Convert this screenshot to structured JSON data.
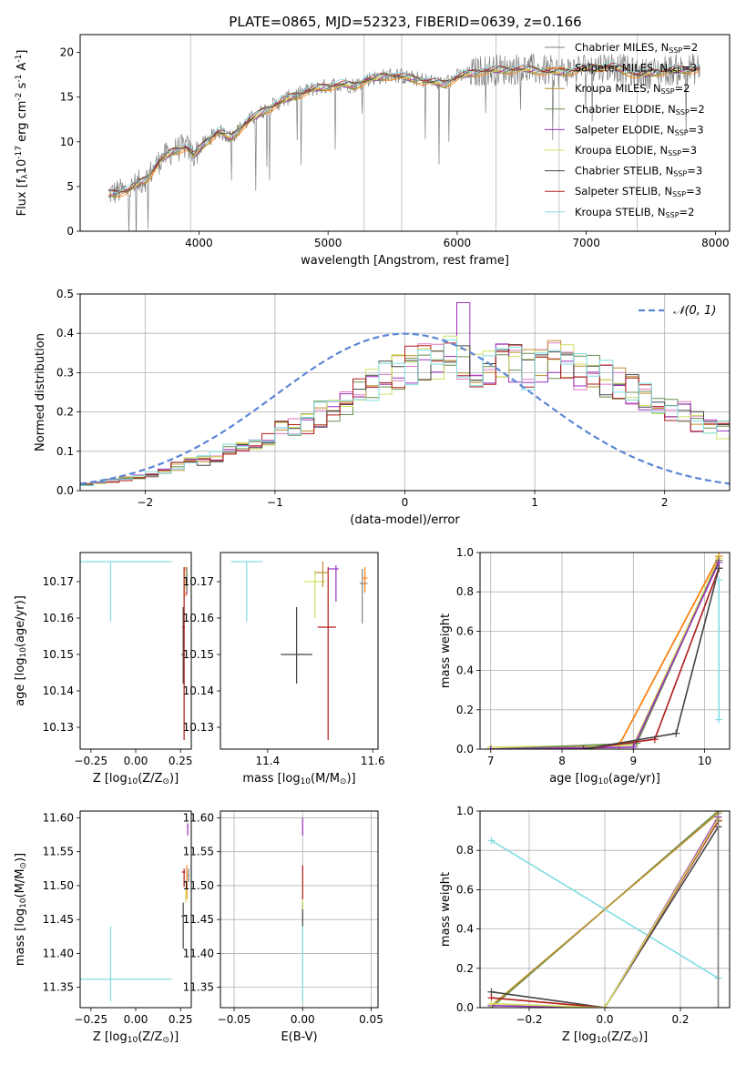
{
  "figure_title": "PLATE=0865, MJD=52323, FIBERID=0639, z=0.166",
  "palette": {
    "gray": "#7f7f7f",
    "blue": "#1f77b4",
    "orange": "#ff7f0e",
    "green": "#2ca02c",
    "red": "#d62728",
    "purple": "#9467bd",
    "brown": "#8c564b",
    "pink": "#e377c2",
    "olive": "#bcbd22",
    "cyan": "#17becf"
  },
  "series_styles": [
    {
      "color": "#7f7f7f"
    },
    {
      "color": "#ff7f0e"
    },
    {
      "color": "#bc8f2c"
    },
    {
      "color": "#6b8e4e"
    },
    {
      "color": "#9b30c0"
    },
    {
      "color": "#cfe060"
    },
    {
      "color": "#444444"
    },
    {
      "color": "#b01a1a"
    },
    {
      "color": "#80dde0"
    }
  ],
  "chart_data": [
    {
      "id": "spectrum",
      "type": "line",
      "title": "PLATE=0865, MJD=52323, FIBERID=0639, z=0.166",
      "xlabel": "wavelength [Angstrom, rest frame]",
      "ylabel_parts": [
        "Flux [f",
        "λ",
        "10",
        "-17",
        " erg cm",
        "-2",
        " s",
        "-1",
        " A",
        "-1",
        "]"
      ],
      "xlim": [
        3080,
        8110
      ],
      "ylim": [
        0,
        22
      ],
      "xticks": [
        4000,
        5000,
        6000,
        7000,
        8000
      ],
      "yticks": [
        0,
        5,
        10,
        15,
        20
      ],
      "vlines": [
        3935,
        5280,
        5570,
        6300,
        6790,
        7395
      ],
      "x_range_data": [
        3300,
        7880
      ],
      "legend_location": "right",
      "series": [
        {
          "name": "Chabrier MILES, N",
          "sub": "SSP",
          "suffix": "=2"
        },
        {
          "name": "Salpeter MILES, N",
          "sub": "SSP",
          "suffix": "=3"
        },
        {
          "name": "Kroupa MILES, N",
          "sub": "SSP",
          "suffix": "=2"
        },
        {
          "name": "Chabrier ELODIE, N",
          "sub": "SSP",
          "suffix": "=2"
        },
        {
          "name": "Salpeter ELODIE, N",
          "sub": "SSP",
          "suffix": "=3"
        },
        {
          "name": "Kroupa ELODIE, N",
          "sub": "SSP",
          "suffix": "=3"
        },
        {
          "name": "Chabrier STELIB, N",
          "sub": "SSP",
          "suffix": "=3"
        },
        {
          "name": "Salpeter STELIB, N",
          "sub": "SSP",
          "suffix": "=3"
        },
        {
          "name": "Kroupa STELIB, N",
          "sub": "SSP",
          "suffix": "=2"
        }
      ],
      "continuum_knots": [
        [
          3300,
          4.2
        ],
        [
          3450,
          4.6
        ],
        [
          3600,
          6.0
        ],
        [
          3700,
          8.0
        ],
        [
          3800,
          9.0
        ],
        [
          3900,
          9.5
        ],
        [
          3960,
          8.5
        ],
        [
          4050,
          10.0
        ],
        [
          4150,
          11.2
        ],
        [
          4250,
          10.5
        ],
        [
          4350,
          12.0
        ],
        [
          4500,
          13.5
        ],
        [
          4700,
          15.0
        ],
        [
          4900,
          16.0
        ],
        [
          5100,
          16.5
        ],
        [
          5200,
          16.3
        ],
        [
          5300,
          17.0
        ],
        [
          5500,
          17.5
        ],
        [
          5700,
          17.0
        ],
        [
          5900,
          16.5
        ],
        [
          6000,
          17.3
        ],
        [
          6200,
          18.0
        ],
        [
          6500,
          18.2
        ],
        [
          6800,
          17.8
        ],
        [
          7000,
          18.3
        ],
        [
          7200,
          18.5
        ],
        [
          7400,
          17.5
        ],
        [
          7600,
          18.0
        ],
        [
          7880,
          18.2
        ]
      ]
    },
    {
      "id": "residuals",
      "type": "histogram",
      "xlabel": "(data-model)/error",
      "ylabel": "Normed distribution",
      "xlim": [
        -2.5,
        2.5
      ],
      "ylim": [
        0,
        0.5
      ],
      "xticks": [
        -2,
        -1,
        0,
        1,
        2
      ],
      "yticks": [
        0.0,
        0.1,
        0.2,
        0.3,
        0.4,
        0.5
      ],
      "ytick_labels": [
        "0.0",
        "0.1",
        "0.2",
        "0.3",
        "0.4",
        "0.5"
      ],
      "xtick_labels": [
        "−2",
        "−1",
        "0",
        "1",
        "2"
      ],
      "grid": true,
      "legend_location": "top-right",
      "reference_curve": {
        "name": "𝒩(0, 1)",
        "color": "#5b86d6",
        "style": "dashed"
      },
      "bin_edges_start": -2.5,
      "bin_width": 0.1,
      "base_profile": [
        0.015,
        0.02,
        0.025,
        0.03,
        0.035,
        0.04,
        0.05,
        0.06,
        0.07,
        0.075,
        0.085,
        0.1,
        0.11,
        0.12,
        0.13,
        0.15,
        0.16,
        0.17,
        0.19,
        0.2,
        0.22,
        0.24,
        0.26,
        0.28,
        0.3,
        0.31,
        0.32,
        0.33,
        0.33,
        0.32,
        0.31,
        0.31,
        0.32,
        0.31,
        0.3,
        0.31,
        0.32,
        0.31,
        0.3,
        0.29,
        0.28,
        0.26,
        0.25,
        0.23,
        0.22,
        0.2,
        0.19,
        0.17,
        0.16,
        0.15
      ]
    },
    {
      "id": "age-vs-Z",
      "type": "scatter",
      "xlabel_parts": [
        "Z [log",
        "10",
        "(Z/Z",
        "⊙",
        ")]"
      ],
      "ylabel_parts": [
        "age  [log",
        "10",
        "(age/yr)]"
      ],
      "xlim": [
        -0.31,
        0.31
      ],
      "ylim": [
        10.124,
        10.178
      ],
      "xticks": [
        -0.25,
        0.0,
        0.25
      ],
      "xtick_labels": [
        "−0.25",
        "0.00",
        "0.25"
      ],
      "yticks": [
        10.13,
        10.14,
        10.15,
        10.16,
        10.17
      ],
      "ytick_labels": [
        "10.13",
        "10.14",
        "10.15",
        "10.16",
        "10.17"
      ],
      "points": [
        {
          "x": -0.14,
          "y": 10.1755,
          "xerr": [
            0.17,
            0.34
          ],
          "yerr": [
            0.0165,
            0.0
          ],
          "series": 8
        },
        {
          "x": 0.265,
          "y": 10.15,
          "xerr": [
            0.01,
            0.01
          ],
          "yerr": [
            0.008,
            0.013
          ],
          "series": 6
        },
        {
          "x": 0.27,
          "y": 10.1575,
          "xerr": [
            0.01,
            0.005
          ],
          "yerr": [
            0.031,
            0.0165
          ],
          "series": 7
        },
        {
          "x": 0.28,
          "y": 10.17,
          "xerr": [
            0.008,
            0.005
          ],
          "yerr": [
            0.004,
            0.004
          ],
          "series": 1
        },
        {
          "x": 0.285,
          "y": 10.1705,
          "xerr": [
            0.005,
            0.005
          ],
          "yerr": [
            0.004,
            0.002
          ],
          "series": 4
        },
        {
          "x": 0.28,
          "y": 10.169,
          "xerr": [
            0.005,
            0.005
          ],
          "yerr": [
            0.002,
            0.004
          ],
          "series": 5
        },
        {
          "x": 0.285,
          "y": 10.171,
          "xerr": [
            0.004,
            0.004
          ],
          "yerr": [
            0.003,
            0.003
          ],
          "series": 0
        }
      ]
    },
    {
      "id": "age-vs-mass",
      "type": "scatter",
      "xlabel_parts": [
        "mass [log",
        "10",
        "(M/M",
        "⊙",
        ")]"
      ],
      "xlim": [
        11.31,
        11.61
      ],
      "ylim": [
        10.124,
        10.178
      ],
      "xticks": [
        11.4,
        11.6
      ],
      "xtick_labels": [
        "11.4",
        "11.6"
      ],
      "yticks": [
        10.13,
        10.14,
        10.15,
        10.16,
        10.17
      ],
      "ytick_labels": [
        "10.13",
        "10.14",
        "10.15",
        "10.16",
        "10.17"
      ],
      "points": [
        {
          "x": 11.36,
          "y": 10.1755,
          "xerr": [
            0.03,
            0.03
          ],
          "yerr": [
            0.0165,
            0.0
          ],
          "series": 8
        },
        {
          "x": 11.455,
          "y": 10.15,
          "xerr": [
            0.03,
            0.03
          ],
          "yerr": [
            0.008,
            0.013
          ],
          "series": 6
        },
        {
          "x": 11.515,
          "y": 10.1575,
          "xerr": [
            0.02,
            0.015
          ],
          "yerr": [
            0.031,
            0.0165
          ],
          "series": 7
        },
        {
          "x": 11.49,
          "y": 10.17,
          "xerr": [
            0.02,
            0.02
          ],
          "yerr": [
            0.01,
            0.003
          ],
          "series": 5
        },
        {
          "x": 11.505,
          "y": 10.1725,
          "xerr": [
            0.015,
            0.01
          ],
          "yerr": [
            0.004,
            0.003
          ],
          "series": 2
        },
        {
          "x": 11.53,
          "y": 10.1735,
          "xerr": [
            0.015,
            0.005
          ],
          "yerr": [
            0.009,
            0.001
          ],
          "series": 4
        },
        {
          "x": 11.58,
          "y": 10.1695,
          "xerr": [
            0.005,
            0.01
          ],
          "yerr": [
            0.011,
            0.004
          ],
          "series": 0
        },
        {
          "x": 11.585,
          "y": 10.171,
          "xerr": [
            0.005,
            0.005
          ],
          "yerr": [
            0.004,
            0.003
          ],
          "series": 1
        }
      ]
    },
    {
      "id": "massweight-vs-age",
      "type": "line",
      "xlabel_parts": [
        "age  [log",
        "10",
        "(age/yr)]"
      ],
      "ylabel": "mass weight",
      "xlim": [
        6.85,
        10.35
      ],
      "ylim": [
        0,
        1
      ],
      "xticks": [
        7,
        8,
        9,
        10
      ],
      "yticks": [
        0.0,
        0.2,
        0.4,
        0.6,
        0.8,
        1.0
      ],
      "ytick_labels": [
        "0.0",
        "0.2",
        "0.4",
        "0.6",
        "0.8",
        "1.0"
      ],
      "grid": true,
      "series_lines": [
        {
          "series": 2,
          "x": [
            7.0,
            8.8,
            10.2
          ],
          "y": [
            0.0,
            0.02,
            0.98
          ]
        },
        {
          "series": 1,
          "x": [
            8.8,
            10.2
          ],
          "y": [
            0.02,
            0.98
          ]
        },
        {
          "series": 5,
          "x": [
            7.0,
            9.0,
            10.2
          ],
          "y": [
            0.01,
            0.02,
            0.97
          ]
        },
        {
          "series": 3,
          "x": [
            7.0,
            9.05,
            10.2
          ],
          "y": [
            0.0,
            0.03,
            0.96
          ]
        },
        {
          "series": 4,
          "x": [
            7.0,
            9.0,
            10.2
          ],
          "y": [
            0.0,
            0.01,
            0.95
          ]
        },
        {
          "series": 7,
          "x": [
            8.3,
            9.3,
            10.2
          ],
          "y": [
            0.0,
            0.05,
            0.92
          ]
        },
        {
          "series": 6,
          "x": [
            8.3,
            9.6,
            10.2
          ],
          "y": [
            0.0,
            0.08,
            0.92
          ]
        },
        {
          "series": 8,
          "x": [
            10.2,
            10.2
          ],
          "y": [
            0.15,
            0.86
          ]
        }
      ]
    },
    {
      "id": "mass-vs-Z",
      "type": "scatter",
      "xlabel_parts": [
        "Z [log",
        "10",
        "(Z/Z",
        "⊙",
        ")]"
      ],
      "ylabel_parts": [
        "mass [log",
        "10",
        "(M/M",
        "⊙",
        ")]"
      ],
      "xlim": [
        -0.31,
        0.31
      ],
      "ylim": [
        11.32,
        11.61
      ],
      "xticks": [
        -0.25,
        0.0,
        0.25
      ],
      "xtick_labels": [
        "−0.25",
        "0.00",
        "0.25"
      ],
      "yticks": [
        11.35,
        11.4,
        11.45,
        11.5,
        11.55,
        11.6
      ],
      "ytick_labels": [
        "11.35",
        "11.40",
        "11.45",
        "11.50",
        "11.55",
        "11.60"
      ],
      "points": [
        {
          "x": -0.14,
          "y": 11.362,
          "xerr": [
            0.17,
            0.34
          ],
          "yerr": [
            0.033,
            0.078
          ],
          "series": 8
        },
        {
          "x": 0.265,
          "y": 11.455,
          "xerr": [
            0.01,
            0.01
          ],
          "yerr": [
            0.048,
            0.02
          ],
          "series": 6
        },
        {
          "x": 0.27,
          "y": 11.52,
          "xerr": [
            0.012,
            0.006
          ],
          "yerr": [
            0.022,
            0.005
          ],
          "series": 7
        },
        {
          "x": 0.285,
          "y": 11.5,
          "xerr": [
            0.005,
            0.005
          ],
          "yerr": [
            0.02,
            0.03
          ],
          "series": 1
        },
        {
          "x": 0.28,
          "y": 11.485,
          "xerr": [
            0.005,
            0.005
          ],
          "yerr": [
            0.01,
            0.01
          ],
          "series": 5
        },
        {
          "x": 0.29,
          "y": 11.587,
          "xerr": [
            0.004,
            0.004
          ],
          "yerr": [
            0.013,
            0.005
          ],
          "series": 4
        },
        {
          "x": 0.295,
          "y": 11.515,
          "xerr": [
            0.004,
            0.004
          ],
          "yerr": [
            0.01,
            0.01
          ],
          "series": 0
        }
      ]
    },
    {
      "id": "mass-vs-EBV",
      "type": "scatter",
      "xlabel": "E(B-V)",
      "xlim": [
        -0.06,
        0.055
      ],
      "ylim": [
        11.32,
        11.61
      ],
      "xticks": [
        -0.05,
        0.0,
        0.05
      ],
      "xtick_labels": [
        "−0.05",
        "0.00",
        "0.05"
      ],
      "yticks": [
        11.35,
        11.4,
        11.45,
        11.5,
        11.55,
        11.6
      ],
      "ytick_labels": [
        "11.35",
        "11.40",
        "11.45",
        "11.50",
        "11.55",
        "11.60"
      ],
      "grid": true,
      "points": [
        {
          "x": 0.0,
          "y": 11.362,
          "xerr": [
            0,
            0
          ],
          "yerr": [
            0.033,
            0.078
          ],
          "series": 8
        },
        {
          "x": 0.0,
          "y": 11.455,
          "xerr": [
            0,
            0
          ],
          "yerr": [
            0.015,
            0.02
          ],
          "series": 6
        },
        {
          "x": 0.0,
          "y": 11.475,
          "xerr": [
            0,
            0
          ],
          "yerr": [
            0.01,
            0.01
          ],
          "series": 5
        },
        {
          "x": 0.0,
          "y": 11.5,
          "xerr": [
            0,
            0
          ],
          "yerr": [
            0.02,
            0.03
          ],
          "series": 7
        },
        {
          "x": 0.0,
          "y": 11.587,
          "xerr": [
            0,
            0
          ],
          "yerr": [
            0.013,
            0.013
          ],
          "series": 4
        }
      ]
    },
    {
      "id": "massweight-vs-Z",
      "type": "line",
      "xlabel_parts": [
        "Z [log",
        "10",
        "(Z/Z",
        "⊙",
        ")]"
      ],
      "ylabel": "mass weight",
      "xlim": [
        -0.33,
        0.33
      ],
      "ylim": [
        0,
        1
      ],
      "xticks": [
        -0.2,
        0.0,
        0.2
      ],
      "xtick_labels": [
        "−0.2",
        "0.0",
        "0.2"
      ],
      "yticks": [
        0.0,
        0.2,
        0.4,
        0.6,
        0.8,
        1.0
      ],
      "ytick_labels": [
        "0.0",
        "0.2",
        "0.4",
        "0.6",
        "0.8",
        "1.0"
      ],
      "grid": true,
      "series_lines": [
        {
          "series": 3,
          "x": [
            -0.3,
            0.3
          ],
          "y": [
            0.0,
            1.0
          ]
        },
        {
          "series": 2,
          "x": [
            -0.3,
            0.3
          ],
          "y": [
            0.01,
            0.99
          ]
        },
        {
          "series": 8,
          "x": [
            -0.3,
            0.3
          ],
          "y": [
            0.85,
            0.15
          ]
        },
        {
          "series": 6,
          "x": [
            -0.3,
            0.0,
            0.3
          ],
          "y": [
            0.08,
            0.0,
            0.92
          ]
        },
        {
          "series": 7,
          "x": [
            -0.3,
            0.0,
            0.3
          ],
          "y": [
            0.05,
            0.0,
            0.95
          ]
        },
        {
          "series": 4,
          "x": [
            -0.3,
            0.0,
            0.3
          ],
          "y": [
            0.01,
            0.0,
            0.97
          ]
        },
        {
          "series": 5,
          "x": [
            -0.3,
            0.0,
            0.3
          ],
          "y": [
            0.02,
            0.0,
            0.96
          ]
        },
        {
          "series": 0,
          "x": [
            0.3,
            0.3
          ],
          "y": [
            0.0,
            1.0
          ]
        }
      ]
    }
  ]
}
